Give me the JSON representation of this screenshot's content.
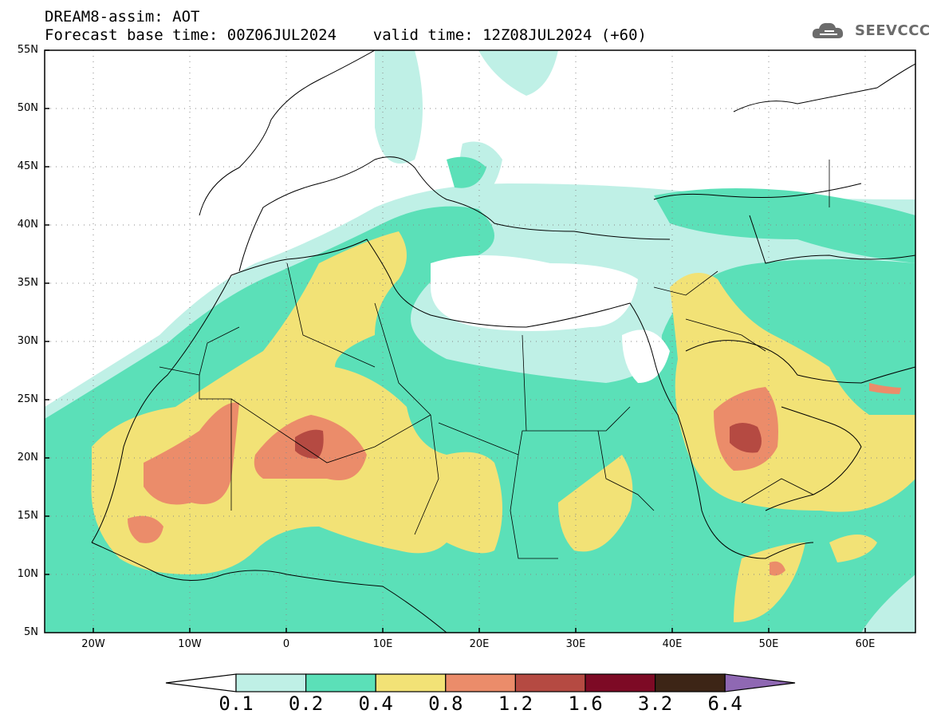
{
  "header": {
    "title_line1": "DREAM8-assim: AOT",
    "title_line2": "Forecast base time: 00Z06JUL2024    valid time: 12Z08JUL2024 (+60)"
  },
  "logo": {
    "text": "SEEVCCC",
    "icon": "cloud-icon"
  },
  "map": {
    "lat_labels": [
      "55N",
      "50N",
      "45N",
      "40N",
      "35N",
      "30N",
      "25N",
      "20N",
      "15N",
      "10N",
      "5N"
    ],
    "lon_labels": [
      "20W",
      "10W",
      "0",
      "10E",
      "20E",
      "30E",
      "40E",
      "50E",
      "60E"
    ]
  },
  "colorbar": {
    "labels": [
      "0.1",
      "0.2",
      "0.4",
      "0.8",
      "1.2",
      "1.6",
      "3.2",
      "6.4"
    ],
    "colors": {
      "under": "#ffffff",
      "c01_02": "#bff0e6",
      "c02_04": "#5be0b8",
      "c04_08": "#f2e276",
      "c08_12": "#eb8c6a",
      "c12_16": "#b54a42",
      "c16_32": "#7d0a25",
      "c32_64": "#3d2516",
      "over": "#8f68b3"
    }
  }
}
